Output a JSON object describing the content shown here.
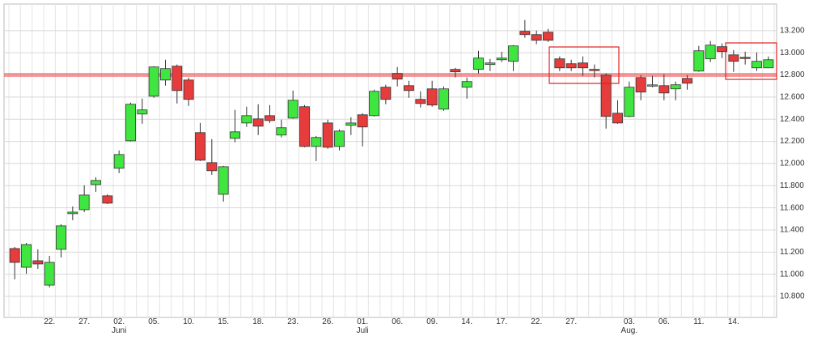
{
  "chart_data": {
    "type": "candlestick",
    "categories": [
      null,
      null,
      null,
      "22.",
      null,
      null,
      "27.",
      null,
      null,
      "02.\nJuni",
      null,
      null,
      "05.",
      null,
      null,
      "10.",
      null,
      null,
      "15.",
      null,
      null,
      "18.",
      null,
      null,
      "23.",
      null,
      null,
      "26.",
      null,
      null,
      "01.\nJuli",
      null,
      null,
      "06.",
      null,
      null,
      "09.",
      null,
      null,
      "14.",
      null,
      null,
      "17.",
      null,
      null,
      "22.",
      null,
      null,
      "27.",
      null,
      null,
      null,
      null,
      "03.\nAug.",
      null,
      null,
      "06.",
      null,
      null,
      "11.",
      null,
      null,
      "14.",
      null,
      null,
      null
    ],
    "open": [
      11232,
      11063,
      11122,
      10902,
      11225,
      11547,
      11583,
      11810,
      11708,
      11957,
      12205,
      12447,
      12608,
      12754,
      12879,
      12754,
      12279,
      12008,
      11722,
      12227,
      12366,
      12403,
      12432,
      12257,
      12410,
      12513,
      12154,
      12366,
      12154,
      12345,
      12440,
      12432,
      12689,
      12813,
      12703,
      12579,
      12674,
      12491,
      12850,
      12689,
      12850,
      12894,
      12937,
      12923,
      13194,
      13164,
      13186,
      12945,
      12901,
      12908,
      12850,
      12798,
      12454,
      12425,
      12776,
      12703,
      12703,
      12674,
      12769,
      12835,
      12945,
      13055,
      12981,
      12959,
      12864,
      12864
    ],
    "high": [
      11246,
      11283,
      11225,
      11166,
      11452,
      11612,
      11803,
      11876,
      11722,
      12118,
      12550,
      12586,
      12879,
      12937,
      12894,
      12776,
      12366,
      12220,
      11979,
      12484,
      12513,
      12535,
      12528,
      12396,
      12659,
      12528,
      12249,
      12396,
      12308,
      12418,
      12454,
      12667,
      12711,
      12872,
      12747,
      12652,
      12747,
      12696,
      12864,
      12777,
      13018,
      12945,
      13010,
      13069,
      13296,
      13201,
      13216,
      12967,
      12937,
      12967,
      12894,
      12813,
      12571,
      12740,
      12798,
      12791,
      12806,
      12740,
      12798,
      13062,
      13106,
      13084,
      13025,
      13010,
      13003,
      12967
    ],
    "low": [
      10954,
      11005,
      11049,
      10880,
      11151,
      11488,
      11561,
      11744,
      11634,
      11913,
      12198,
      12359,
      12593,
      12703,
      12542,
      12520,
      12022,
      11898,
      11656,
      12191,
      12330,
      12257,
      12366,
      12235,
      12403,
      12147,
      12022,
      12132,
      12118,
      12257,
      12154,
      12425,
      12535,
      12696,
      12593,
      12506,
      12513,
      12476,
      12777,
      12586,
      12813,
      12835,
      12916,
      12835,
      13135,
      13077,
      13098,
      12835,
      12835,
      12791,
      12777,
      12315,
      12359,
      12418,
      12571,
      12689,
      12571,
      12571,
      12667,
      12828,
      12916,
      12952,
      12828,
      12894,
      12835,
      12864
    ],
    "close": [
      11107,
      11268,
      11093,
      11107,
      11437,
      11561,
      11715,
      11847,
      11642,
      12081,
      12535,
      12484,
      12872,
      12857,
      12659,
      12579,
      12030,
      11935,
      11971,
      12286,
      12432,
      12337,
      12388,
      12323,
      12571,
      12154,
      12235,
      12147,
      12293,
      12366,
      12330,
      12652,
      12579,
      12762,
      12659,
      12542,
      12528,
      12674,
      12828,
      12740,
      12952,
      12908,
      12952,
      13062,
      13164,
      13113,
      13113,
      12864,
      12864,
      12864,
      12842,
      12425,
      12366,
      12689,
      12645,
      12710,
      12637,
      12711,
      12725,
      13018,
      13069,
      13011,
      12923,
      12952,
      12923,
      12937
    ],
    "up_color": "#3fe63f",
    "down_color": "#e63c3c",
    "reference_line": 12800,
    "reference_color": "rgba(240,60,60,0.5)",
    "ylim": [
      10610,
      13440
    ],
    "yticks": [
      {
        "value": 10800,
        "label": "10.800"
      },
      {
        "value": 11000,
        "label": "11.000"
      },
      {
        "value": 11200,
        "label": "11.200"
      },
      {
        "value": 11400,
        "label": "11.400"
      },
      {
        "value": 11600,
        "label": "11.600"
      },
      {
        "value": 11800,
        "label": "11.800"
      },
      {
        "value": 12000,
        "label": "12.000"
      },
      {
        "value": 12200,
        "label": "12.200"
      },
      {
        "value": 12400,
        "label": "12.400"
      },
      {
        "value": 12600,
        "label": "12.600"
      },
      {
        "value": 12800,
        "label": "12.800"
      },
      {
        "value": 13000,
        "label": "13.000"
      },
      {
        "value": 13200,
        "label": "13.200"
      }
    ],
    "grid": true
  }
}
